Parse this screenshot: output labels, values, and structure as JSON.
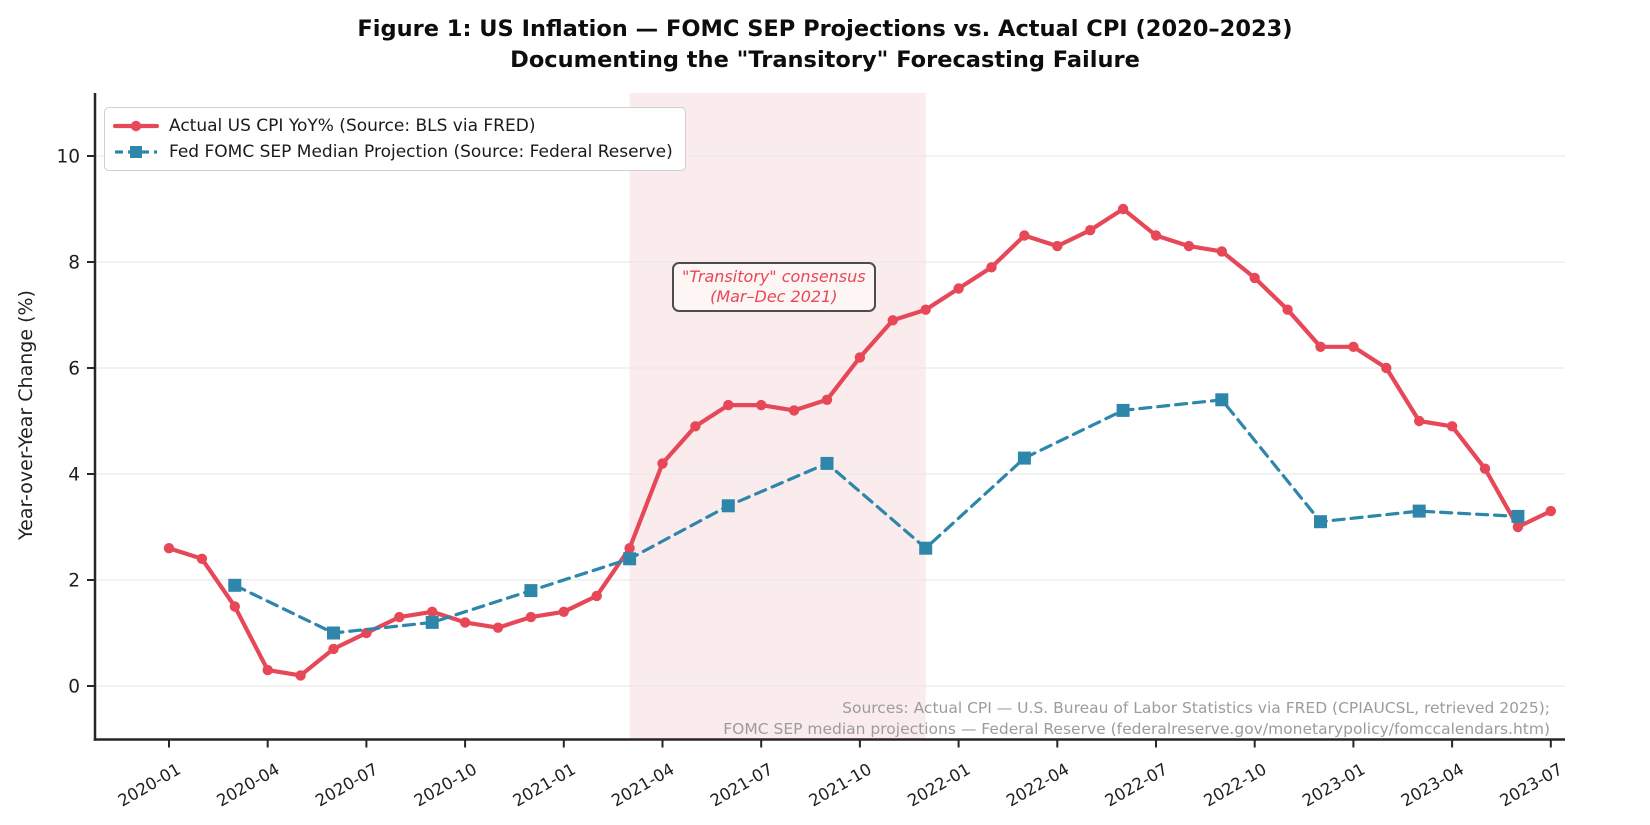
{
  "title": {
    "line1": "Figure 1: US Inflation — FOMC SEP Projections vs. Actual CPI (2020–2023)",
    "line2": "Documenting the \"Transitory\" Forecasting Failure"
  },
  "annotation": {
    "line1": "\"Transitory\" consensus",
    "line2": "(Mar–Dec 2021)"
  },
  "sources": {
    "line1": "Sources: Actual CPI — U.S. Bureau of Labor Statistics via FRED (CPIAUCSL, retrieved 2025);",
    "line2": "FOMC SEP median projections — Federal Reserve (federalreserve.gov/monetarypolicy/fomccalendars.htm)"
  },
  "colors": {
    "cpi_red": "#e74858",
    "sep_blue": "#2e86ab",
    "band_pink": "#faecec",
    "annotation_red": "#e74858",
    "grid_gray": "#e9e9e9",
    "spine_dark": "#262626",
    "tick_text": "#1f1f1f",
    "source_gray": "#9c9c9c"
  },
  "chart_data": {
    "type": "line",
    "title": "Figure 1: US Inflation — FOMC SEP Projections vs. Actual CPI (2020–2023) / Documenting the \"Transitory\" Forecasting Failure",
    "ylabel": "Year-over-Year Change (%)",
    "xlabel": "",
    "ylim": [
      -1.0,
      11.2
    ],
    "grid": "horizontal",
    "legend_position": "upper-left",
    "y_ticks": [
      0,
      2,
      4,
      6,
      8,
      10
    ],
    "x_ticks": [
      "2020-01",
      "2020-04",
      "2020-07",
      "2020-10",
      "2021-01",
      "2021-04",
      "2021-07",
      "2021-10",
      "2022-01",
      "2022-04",
      "2022-07",
      "2022-10",
      "2023-01",
      "2023-04",
      "2023-07"
    ],
    "shaded_region": {
      "from": "2021-03",
      "to": "2021-12",
      "label": "\"Transitory\" consensus (Mar–Dec 2021)"
    },
    "series": [
      {
        "name": "Actual US CPI YoY% (Source: BLS via FRED)",
        "marker": "circle",
        "line_style": "solid",
        "x": [
          "2020-01",
          "2020-02",
          "2020-03",
          "2020-04",
          "2020-05",
          "2020-06",
          "2020-07",
          "2020-08",
          "2020-09",
          "2020-10",
          "2020-11",
          "2020-12",
          "2021-01",
          "2021-02",
          "2021-03",
          "2021-04",
          "2021-05",
          "2021-06",
          "2021-07",
          "2021-08",
          "2021-09",
          "2021-10",
          "2021-11",
          "2021-12",
          "2022-01",
          "2022-02",
          "2022-03",
          "2022-04",
          "2022-05",
          "2022-06",
          "2022-07",
          "2022-08",
          "2022-09",
          "2022-10",
          "2022-11",
          "2022-12",
          "2023-01",
          "2023-02",
          "2023-03",
          "2023-04",
          "2023-05",
          "2023-06",
          "2023-07"
        ],
        "values": [
          2.6,
          2.4,
          1.5,
          0.3,
          0.2,
          0.7,
          1.0,
          1.3,
          1.4,
          1.2,
          1.1,
          1.3,
          1.4,
          1.7,
          2.6,
          4.2,
          4.9,
          5.3,
          5.3,
          5.2,
          5.4,
          6.2,
          6.9,
          7.1,
          7.5,
          7.9,
          8.5,
          8.3,
          8.6,
          9.0,
          8.5,
          8.3,
          8.2,
          7.7,
          7.1,
          6.4,
          6.4,
          6.0,
          5.0,
          4.9,
          4.1,
          3.0,
          3.3
        ]
      },
      {
        "name": "Fed FOMC SEP Median Projection (Source: Federal Reserve)",
        "marker": "square",
        "line_style": "dashed",
        "x": [
          "2020-03",
          "2020-06",
          "2020-09",
          "2020-12",
          "2021-03",
          "2021-06",
          "2021-09",
          "2021-12",
          "2022-03",
          "2022-06",
          "2022-09",
          "2022-12",
          "2023-03",
          "2023-06"
        ],
        "values": [
          1.9,
          1.0,
          1.2,
          1.8,
          2.4,
          3.4,
          4.2,
          2.6,
          4.3,
          5.2,
          5.4,
          3.1,
          3.3,
          3.2
        ]
      }
    ]
  }
}
